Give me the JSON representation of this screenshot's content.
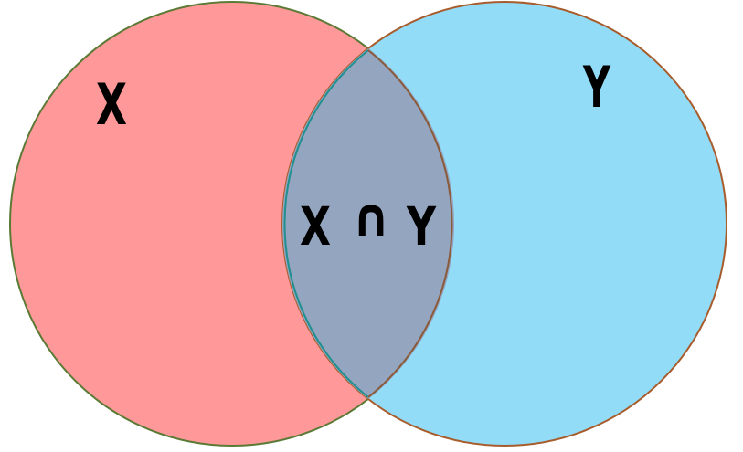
{
  "diagram": {
    "type": "venn",
    "sets": [
      {
        "label": "X",
        "fill": "#fe9899",
        "stroke": "#5a7a35"
      },
      {
        "label": "Y",
        "fill": "#92dcf7",
        "stroke": "#a85c2b"
      }
    ],
    "intersection": {
      "left": "X",
      "operator": "∩",
      "right": "Y",
      "fill": "#94a5bf",
      "stroke_left": "#1f8f8f",
      "stroke_right": "#8a5a3a"
    },
    "background": "#ffffff"
  }
}
